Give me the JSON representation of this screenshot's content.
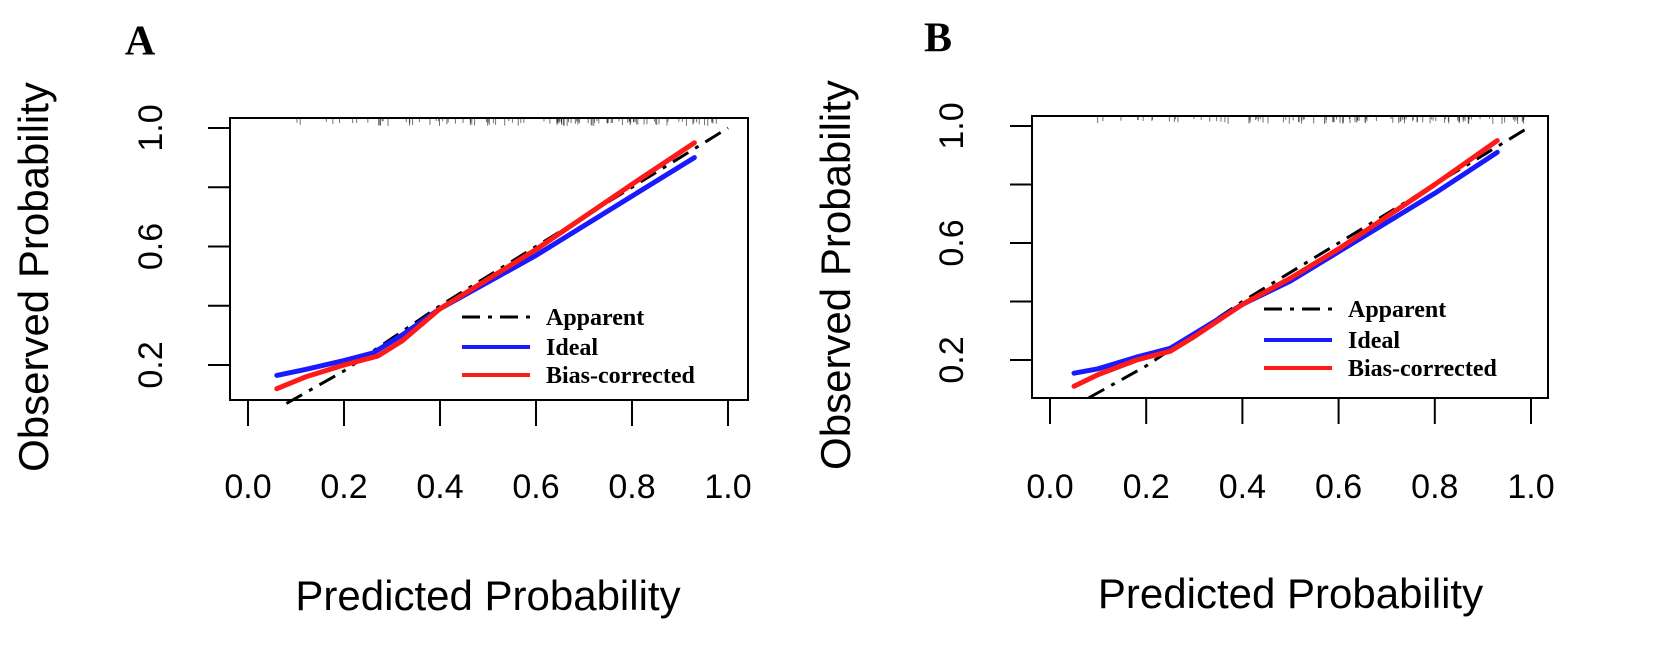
{
  "colors": {
    "apparent": "#000000",
    "ideal": "#1a1aff",
    "bias_corrected": "#ff1a1a"
  },
  "chart_data": [
    {
      "type": "line",
      "panel": "A",
      "title": "",
      "xlabel": "Predicted Probability",
      "ylabel": "Observed Probability",
      "xlim": [
        0.0,
        1.0
      ],
      "ylim": [
        0.06,
        1.05
      ],
      "xticks": [
        0.0,
        0.2,
        0.4,
        0.6,
        0.8,
        1.0
      ],
      "xtick_labels": [
        "0.0",
        "0.2",
        "0.4",
        "0.6",
        "0.8",
        "1.0"
      ],
      "yticks": [
        0.2,
        0.4,
        0.6,
        0.8,
        1.0
      ],
      "ytick_labels": [
        "0.2",
        "",
        "0.6",
        "",
        "1.0"
      ],
      "legend": [
        "Apparent",
        "Ideal",
        "Bias-corrected"
      ],
      "legend_position": "bottom-right",
      "series": [
        {
          "name": "Apparent",
          "style": "dashdot",
          "x": [
            0.08,
            0.2,
            0.3,
            0.4,
            0.5,
            0.6,
            0.7,
            0.8,
            0.9,
            1.0
          ],
          "y": [
            0.07,
            0.18,
            0.29,
            0.4,
            0.5,
            0.6,
            0.7,
            0.8,
            0.9,
            1.0
          ]
        },
        {
          "name": "Ideal",
          "style": "solid",
          "x": [
            0.06,
            0.12,
            0.2,
            0.26,
            0.32,
            0.4,
            0.5,
            0.6,
            0.7,
            0.8,
            0.93
          ],
          "y": [
            0.165,
            0.185,
            0.215,
            0.24,
            0.3,
            0.39,
            0.48,
            0.57,
            0.67,
            0.77,
            0.9
          ]
        },
        {
          "name": "Bias-corrected",
          "style": "solid",
          "x": [
            0.06,
            0.12,
            0.2,
            0.27,
            0.32,
            0.4,
            0.5,
            0.6,
            0.7,
            0.8,
            0.93
          ],
          "y": [
            0.12,
            0.16,
            0.2,
            0.23,
            0.28,
            0.39,
            0.49,
            0.59,
            0.7,
            0.81,
            0.95
          ]
        }
      ]
    },
    {
      "type": "line",
      "panel": "B",
      "title": "",
      "xlabel": "Predicted Probability",
      "ylabel": "Observed Probability",
      "xlim": [
        0.0,
        1.0
      ],
      "ylim": [
        0.06,
        1.05
      ],
      "xticks": [
        0.0,
        0.2,
        0.4,
        0.6,
        0.8,
        1.0
      ],
      "xtick_labels": [
        "0.0",
        "0.2",
        "0.4",
        "0.6",
        "0.8",
        "1.0"
      ],
      "yticks": [
        0.2,
        0.4,
        0.6,
        0.8,
        1.0
      ],
      "ytick_labels": [
        "0.2",
        "",
        "0.6",
        "",
        "1.0"
      ],
      "legend": [
        "Apparent",
        "Ideal",
        "Bias-corrected"
      ],
      "legend_position": "bottom-right",
      "series": [
        {
          "name": "Apparent",
          "style": "dashdot",
          "x": [
            0.08,
            0.2,
            0.3,
            0.4,
            0.5,
            0.6,
            0.7,
            0.8,
            0.9,
            1.0
          ],
          "y": [
            0.07,
            0.18,
            0.29,
            0.4,
            0.5,
            0.6,
            0.7,
            0.8,
            0.9,
            1.0
          ]
        },
        {
          "name": "Ideal",
          "style": "solid",
          "x": [
            0.05,
            0.1,
            0.18,
            0.25,
            0.3,
            0.4,
            0.5,
            0.6,
            0.7,
            0.8,
            0.93
          ],
          "y": [
            0.155,
            0.17,
            0.21,
            0.24,
            0.29,
            0.39,
            0.47,
            0.57,
            0.67,
            0.77,
            0.91
          ]
        },
        {
          "name": "Bias-corrected",
          "style": "solid",
          "x": [
            0.05,
            0.1,
            0.18,
            0.25,
            0.3,
            0.4,
            0.5,
            0.6,
            0.7,
            0.8,
            0.93
          ],
          "y": [
            0.11,
            0.15,
            0.2,
            0.23,
            0.28,
            0.39,
            0.48,
            0.58,
            0.69,
            0.8,
            0.95
          ]
        }
      ]
    }
  ]
}
